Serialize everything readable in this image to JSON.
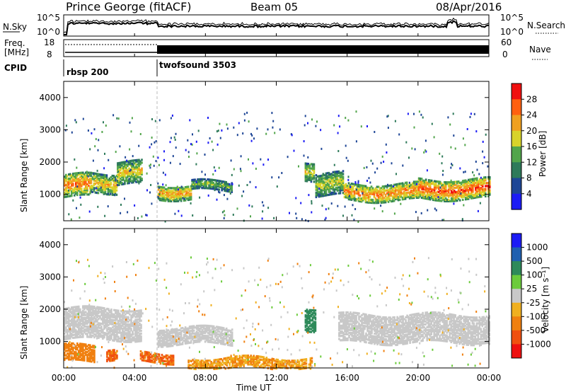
{
  "header": {
    "station": "Prince George (fitACF)",
    "beam": "Beam 05",
    "date": "08/Apr/2016"
  },
  "chart_data": [
    {
      "type": "line",
      "panel": "noise",
      "left_label": "N.Sky",
      "right_label": "N.Search",
      "left_ticks": [
        "10^5",
        "10^0"
      ],
      "right_ticks": [
        "10^5",
        "10^0"
      ]
    },
    {
      "type": "line",
      "panel": "frequency-nave",
      "left_label": "Freq.",
      "left_unit": "[MHz]",
      "left_ticks": [
        "18",
        "8"
      ],
      "right_label": "Nave",
      "right_ticks": [
        "60",
        "0"
      ]
    },
    {
      "type": "timeline",
      "panel": "cpid",
      "label": "CPID",
      "segments": [
        {
          "name": "rbsp 200",
          "start_hour": 0.0
        },
        {
          "name": "twofsound 3503",
          "start_hour": 5.3
        }
      ]
    },
    {
      "type": "heatmap",
      "panel": "power",
      "ylabel": "Slant Range [km]",
      "yticks": [
        "1000",
        "2000",
        "3000",
        "4000"
      ],
      "ylim": [
        180,
        4500
      ],
      "colorbar_label": "Power [dB]",
      "colorbar_ticks": [
        "4",
        "8",
        "12",
        "16",
        "20",
        "24",
        "28"
      ],
      "colors": [
        "#1c1cf5",
        "#1e4696",
        "#2e7a5a",
        "#52a54b",
        "#d8d32a",
        "#f0a020",
        "#ff6010",
        "#f01010"
      ],
      "bands": [
        {
          "start": 0.0,
          "end": 1.5,
          "min_km": 950,
          "max_km": 1650,
          "level": 26
        },
        {
          "start": 1.5,
          "end": 3.0,
          "min_km": 1100,
          "max_km": 1700,
          "level": 22
        },
        {
          "start": 3.0,
          "end": 4.4,
          "min_km": 1350,
          "max_km": 2050,
          "level": 20
        },
        {
          "start": 5.3,
          "end": 7.2,
          "min_km": 900,
          "max_km": 1350,
          "level": 24
        },
        {
          "start": 7.2,
          "end": 9.5,
          "min_km": 1150,
          "max_km": 1450,
          "level": 16
        },
        {
          "start": 13.6,
          "end": 14.1,
          "min_km": 1500,
          "max_km": 2050,
          "level": 20
        },
        {
          "start": 14.2,
          "end": 15.8,
          "min_km": 1000,
          "max_km": 1700,
          "level": 18
        },
        {
          "start": 15.8,
          "end": 20.0,
          "min_km": 850,
          "max_km": 1350,
          "level": 26
        },
        {
          "start": 20.0,
          "end": 24.0,
          "min_km": 900,
          "max_km": 1500,
          "level": 28
        }
      ]
    },
    {
      "type": "heatmap",
      "panel": "velocity",
      "ylabel": "Slant Range [km]",
      "yticks": [
        "1000",
        "2000",
        "3000",
        "4000"
      ],
      "ylim": [
        180,
        4500
      ],
      "xlabel": "Time UT",
      "xticks": [
        "00:00",
        "04:00",
        "08:00",
        "12:00",
        "16:00",
        "20:00",
        "00:00"
      ],
      "xlim": [
        0,
        24
      ],
      "colorbar_label": "Velocity [m s⁻¹]",
      "colorbar_ticks": [
        "1000",
        "500",
        "100",
        "25",
        "-25",
        "-100",
        "-500",
        "-1000"
      ],
      "colors": [
        "#1c1cf5",
        "#2060b0",
        "#2e8a5a",
        "#6ccb3c",
        "#c8c8c8",
        "#f0b020",
        "#f08010",
        "#f05010",
        "#ee1010"
      ],
      "bands": [
        {
          "start": 0.0,
          "end": 4.4,
          "min_km": 1100,
          "max_km": 2050,
          "velocity": 0
        },
        {
          "start": 0.0,
          "end": 1.7,
          "min_km": 400,
          "max_km": 900,
          "velocity": -400
        },
        {
          "start": 2.4,
          "end": 3.0,
          "min_km": 500,
          "max_km": 850,
          "velocity": -500
        },
        {
          "start": 4.3,
          "end": 6.2,
          "min_km": 400,
          "max_km": 700,
          "velocity": -500
        },
        {
          "start": 5.3,
          "end": 9.5,
          "min_km": 950,
          "max_km": 1450,
          "velocity": 0
        },
        {
          "start": 13.6,
          "end": 14.2,
          "min_km": 1400,
          "max_km": 2100,
          "velocity": 150
        },
        {
          "start": 15.5,
          "end": 24.0,
          "min_km": 1000,
          "max_km": 1900,
          "velocity": 0
        },
        {
          "start": 7.0,
          "end": 14.0,
          "min_km": 200,
          "max_km": 550,
          "velocity": -100
        }
      ]
    }
  ]
}
